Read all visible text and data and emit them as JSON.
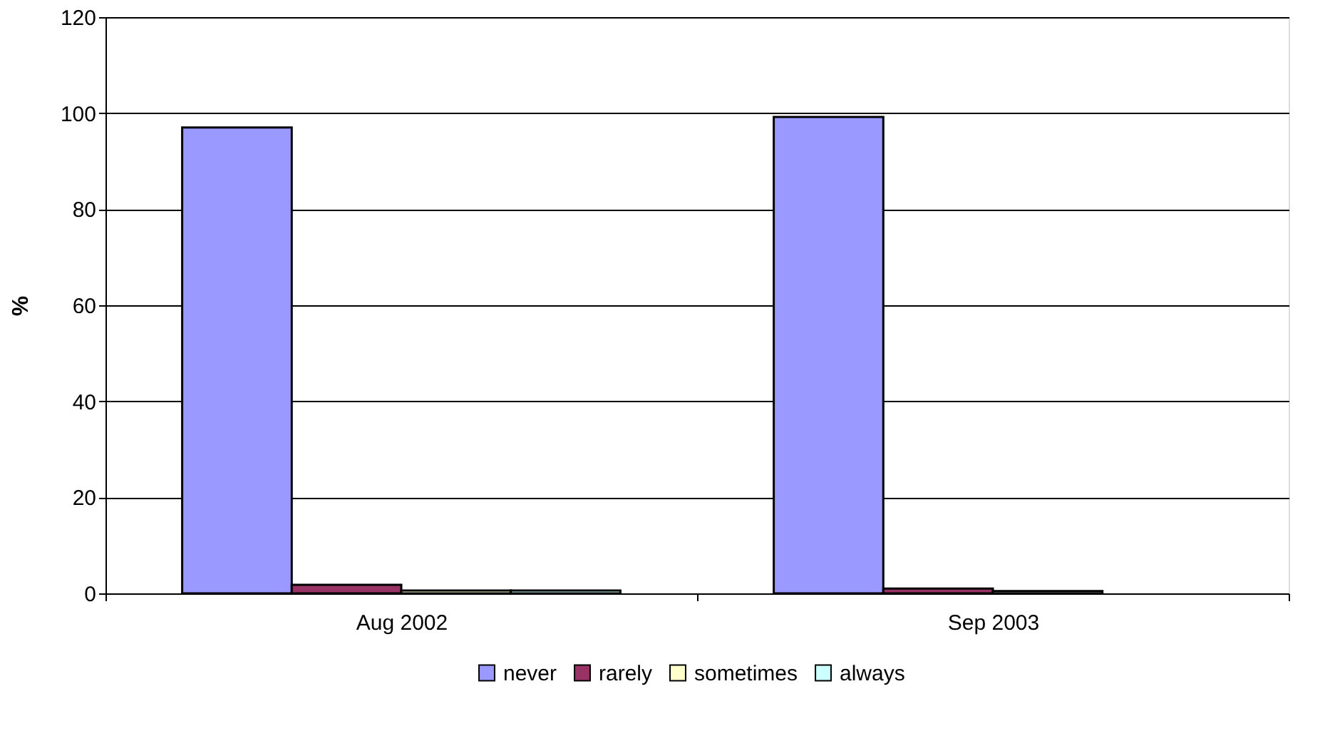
{
  "chart_data": {
    "type": "bar",
    "ylabel": "%",
    "categories": [
      "Aug 2002",
      "Sep 2003"
    ],
    "series": [
      {
        "name": "never",
        "color": "#9999ff",
        "values": [
          97,
          99.2
        ]
      },
      {
        "name": "rarely",
        "color": "#993366",
        "values": [
          1.8,
          1.0
        ]
      },
      {
        "name": "sometimes",
        "color": "#ffffcc",
        "values": [
          0.6,
          0.5
        ]
      },
      {
        "name": "always",
        "color": "#ccffff",
        "values": [
          0.6,
          null
        ]
      }
    ],
    "ylim": [
      0,
      120
    ],
    "yticks": [
      0,
      20,
      40,
      60,
      80,
      100,
      120
    ],
    "grid": "y",
    "legend": "bottom"
  }
}
